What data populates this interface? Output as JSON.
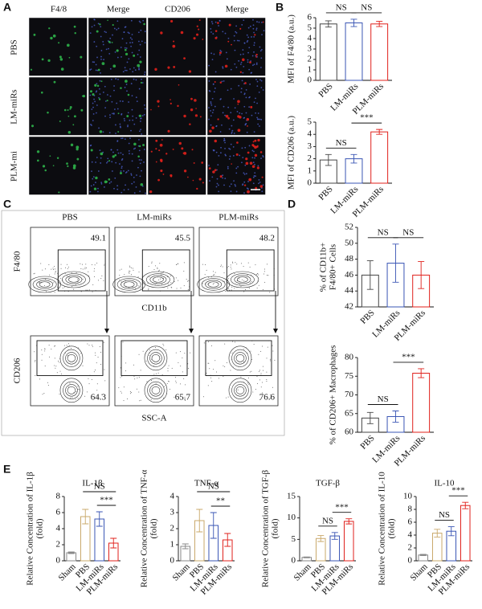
{
  "panel_labels": [
    "A",
    "B",
    "C",
    "D",
    "E"
  ],
  "panel_a": {
    "columns": [
      {
        "text": "F4/8",
        "color": "#2db34a"
      },
      {
        "text": "Merge",
        "color": "#111111"
      },
      {
        "text": "CD206",
        "color": "#e0201b"
      },
      {
        "text": "Merge",
        "color": "#111111"
      }
    ],
    "rows": [
      "PBS",
      "LM-miRs",
      "PLM-mi"
    ]
  },
  "panel_c": {
    "groups": [
      "PBS",
      "LM-miRs",
      "PLM-miRs"
    ],
    "top_ylabel": "F4/80",
    "top_xlabel": "CD11b",
    "bottom_ylabel": "CD206",
    "bottom_xlabel": "SSC-A",
    "top_gates": [
      49.1,
      45.5,
      48.2
    ],
    "bottom_gates": [
      64.3,
      65.7,
      76.6
    ]
  },
  "chart_data": [
    {
      "type": "bar",
      "ylabel": "MFI of F4/80 (a.u.)",
      "categories": [
        "PBS",
        "LM-miRs",
        "PLM-miRs"
      ],
      "values": [
        5.4,
        5.5,
        5.4
      ],
      "errors": [
        0.3,
        0.35,
        0.25
      ],
      "colors": [
        "#444444",
        "#3a55b4",
        "#e0201b"
      ],
      "ylim": [
        0,
        6
      ],
      "yticks": [
        0,
        1,
        2,
        3,
        4,
        5,
        6
      ],
      "comparisons": [
        {
          "text": "NS",
          "between": [
            "PBS",
            "LM-miRs"
          ]
        },
        {
          "text": "NS",
          "between": [
            "LM-miRs",
            "PLM-miRs"
          ]
        }
      ]
    },
    {
      "type": "bar",
      "ylabel": "MFI of CD206 (a.u.)",
      "categories": [
        "PBS",
        "LM-miRs",
        "PLM-miRs"
      ],
      "values": [
        1.9,
        2.0,
        4.2
      ],
      "errors": [
        0.45,
        0.35,
        0.2
      ],
      "colors": [
        "#444444",
        "#3a55b4",
        "#e0201b"
      ],
      "ylim": [
        0,
        5
      ],
      "yticks": [
        0,
        1,
        2,
        3,
        4,
        5
      ],
      "comparisons": [
        {
          "text": "NS",
          "between": [
            "PBS",
            "LM-miRs"
          ]
        },
        {
          "text": "***",
          "between": [
            "LM-miRs",
            "PLM-miRs"
          ]
        }
      ]
    },
    {
      "type": "bar",
      "ylabel": [
        "% of CD11b+",
        "F4/80+ Cells"
      ],
      "categories": [
        "PBS",
        "LM-miRs",
        "PLM-miRs"
      ],
      "values": [
        46,
        47.5,
        46
      ],
      "errors": [
        1.8,
        2.4,
        1.7
      ],
      "colors": [
        "#444444",
        "#3a55b4",
        "#e0201b"
      ],
      "ylim": [
        42,
        52
      ],
      "yticks": [
        42,
        44,
        46,
        48,
        50,
        52
      ],
      "comparisons": [
        {
          "text": "NS",
          "between": [
            "PBS",
            "LM-miRs"
          ]
        },
        {
          "text": "NS",
          "between": [
            "LM-miRs",
            "PLM-miRs"
          ]
        }
      ]
    },
    {
      "type": "bar",
      "ylabel": "% of CD206+ Macrophages",
      "categories": [
        "PBS",
        "LM-miRs",
        "PLM-miRs"
      ],
      "values": [
        63.8,
        64.2,
        75.8
      ],
      "errors": [
        1.5,
        1.5,
        1.2
      ],
      "colors": [
        "#444444",
        "#3a55b4",
        "#e0201b"
      ],
      "ylim": [
        60,
        80
      ],
      "yticks": [
        60,
        65,
        70,
        75,
        80
      ],
      "comparisons": [
        {
          "text": "NS",
          "between": [
            "PBS",
            "LM-miRs"
          ]
        },
        {
          "text": "***",
          "between": [
            "LM-miRs",
            "PLM-miRs"
          ]
        }
      ]
    },
    {
      "type": "bar",
      "title": "IL-1β",
      "ylabel": [
        "Relative Concentration of IL-1β",
        "(fold)"
      ],
      "categories": [
        "Sham",
        "PBS",
        "LM-miRs",
        "PLM-miRs"
      ],
      "values": [
        1.0,
        5.5,
        5.2,
        2.2
      ],
      "errors": [
        0.1,
        0.9,
        0.9,
        0.6
      ],
      "colors": [
        "#888888",
        "#c9a86a",
        "#3a55b4",
        "#e0201b"
      ],
      "ylim": [
        0,
        8
      ],
      "yticks": [
        0,
        2,
        4,
        6,
        8
      ],
      "comparisons": [
        {
          "text": "NS",
          "between": [
            "PBS",
            "PLM-miRs"
          ]
        },
        {
          "text": "***",
          "between": [
            "LM-miRs",
            "PLM-miRs"
          ]
        }
      ]
    },
    {
      "type": "bar",
      "title": "TNF-α",
      "ylabel": [
        "Relative Concentration of TNF-α",
        "(fold)"
      ],
      "categories": [
        "Sham",
        "PBS",
        "LM-miRs",
        "PLM-miRs"
      ],
      "values": [
        0.9,
        2.5,
        2.2,
        1.3
      ],
      "errors": [
        0.15,
        0.7,
        0.8,
        0.4
      ],
      "colors": [
        "#888888",
        "#c9a86a",
        "#3a55b4",
        "#e0201b"
      ],
      "ylim": [
        0,
        4
      ],
      "yticks": [
        0,
        1,
        2,
        3,
        4
      ],
      "comparisons": [
        {
          "text": "NS",
          "between": [
            "PBS",
            "PLM-miRs"
          ]
        },
        {
          "text": "**",
          "between": [
            "LM-miRs",
            "PLM-miRs"
          ]
        }
      ]
    },
    {
      "type": "bar",
      "title": "TGF-β",
      "ylabel": [
        "Relative Concentration of TGF-β",
        "(fold)"
      ],
      "categories": [
        "Sham",
        "PBS",
        "LM-miRs",
        "PLM-miRs"
      ],
      "values": [
        0.8,
        5.2,
        5.8,
        9.2
      ],
      "errors": [
        0.1,
        0.7,
        0.8,
        0.6
      ],
      "colors": [
        "#888888",
        "#c9a86a",
        "#3a55b4",
        "#e0201b"
      ],
      "ylim": [
        0,
        15
      ],
      "yticks": [
        0,
        5,
        10,
        15
      ],
      "comparisons": [
        {
          "text": "NS",
          "between": [
            "PBS",
            "LM-miRs"
          ]
        },
        {
          "text": "***",
          "between": [
            "LM-miRs",
            "PLM-miRs"
          ]
        }
      ]
    },
    {
      "type": "bar",
      "title": "IL-10",
      "ylabel": [
        "Relative Concentration of IL-10",
        "(fold)"
      ],
      "categories": [
        "Sham",
        "PBS",
        "LM-miRs",
        "PLM-miRs"
      ],
      "values": [
        0.9,
        4.3,
        4.6,
        8.6
      ],
      "errors": [
        0.1,
        0.6,
        0.7,
        0.5
      ],
      "colors": [
        "#888888",
        "#c9a86a",
        "#3a55b4",
        "#e0201b"
      ],
      "ylim": [
        0,
        10
      ],
      "yticks": [
        0,
        2,
        4,
        6,
        8,
        10
      ],
      "comparisons": [
        {
          "text": "NS",
          "between": [
            "PBS",
            "LM-miRs"
          ]
        },
        {
          "text": "***",
          "between": [
            "LM-miRs",
            "PLM-miRs"
          ]
        }
      ]
    }
  ]
}
